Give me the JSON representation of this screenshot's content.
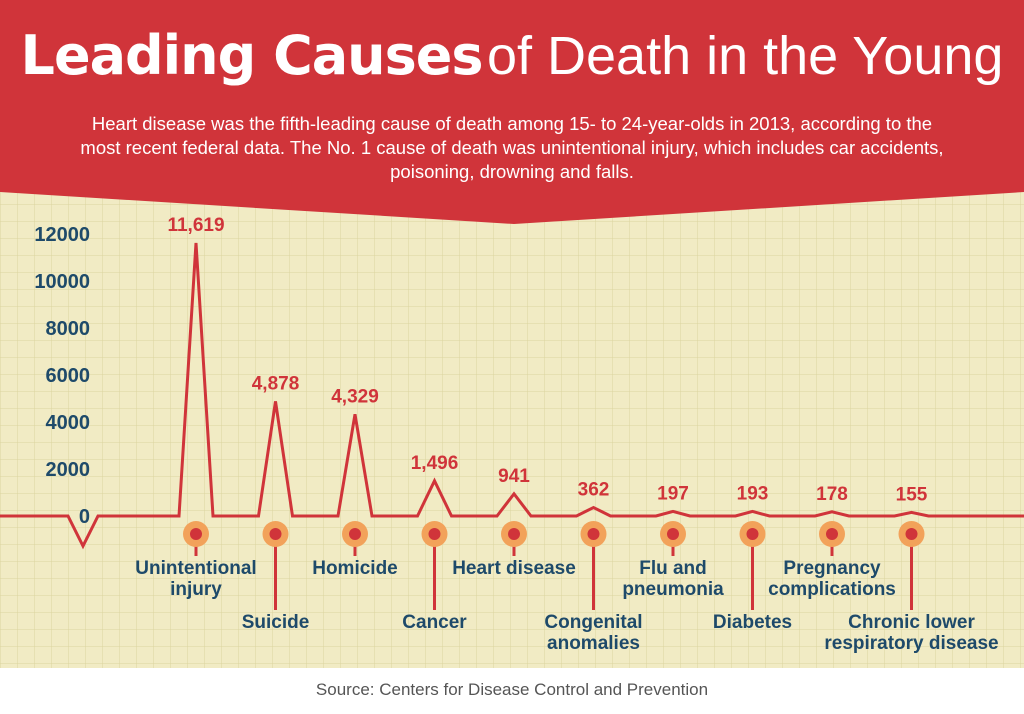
{
  "colors": {
    "banner": "#d0343a",
    "background": "#f1ebc4",
    "grid": "#dcd49f",
    "line": "#d0343a",
    "axis_text": "#1e4a6a",
    "value_text": "#d0343a",
    "label_text": "#1e4a6a",
    "marker_outer": "#f2a25a",
    "marker_inner": "#d0343a"
  },
  "header": {
    "title_bold": "Leading Causes",
    "title_light": "of Death in the Young",
    "subtitle": "Heart disease was the fifth-leading cause of death among 15- to 24-year-olds in 2013, according to the most recent federal data. The No. 1 cause of death was unintentional injury, which includes car accidents, poisoning, drowning and falls."
  },
  "source": "Source: Centers for Disease Control and Prevention",
  "chart_data": {
    "type": "line",
    "style": "heartbeat spikes",
    "title": "Leading Causes of Death in the Young",
    "ylim": [
      0,
      12000
    ],
    "yticks": [
      0,
      2000,
      4000,
      6000,
      8000,
      10000,
      12000
    ],
    "grid": true,
    "legend": "none",
    "categories": [
      {
        "label": [
          "Unintentional",
          "injury"
        ],
        "value": 11619,
        "value_label": "11,619",
        "label_row": 1
      },
      {
        "label": [
          "Suicide"
        ],
        "value": 4878,
        "value_label": "4,878",
        "label_row": 2
      },
      {
        "label": [
          "Homicide"
        ],
        "value": 4329,
        "value_label": "4,329",
        "label_row": 1
      },
      {
        "label": [
          "Cancer"
        ],
        "value": 1496,
        "value_label": "1,496",
        "label_row": 2
      },
      {
        "label": [
          "Heart disease"
        ],
        "value": 941,
        "value_label": "941",
        "label_row": 1
      },
      {
        "label": [
          "Congenital",
          "anomalies"
        ],
        "value": 362,
        "value_label": "362",
        "label_row": 2
      },
      {
        "label": [
          "Flu and",
          "pneumonia"
        ],
        "value": 197,
        "value_label": "197",
        "label_row": 1
      },
      {
        "label": [
          "Diabetes"
        ],
        "value": 193,
        "value_label": "193",
        "label_row": 2
      },
      {
        "label": [
          "Pregnancy",
          "complications"
        ],
        "value": 178,
        "value_label": "178",
        "label_row": 1
      },
      {
        "label": [
          "Chronic lower",
          "respiratory disease"
        ],
        "value": 155,
        "value_label": "155",
        "label_row": 2
      }
    ]
  }
}
